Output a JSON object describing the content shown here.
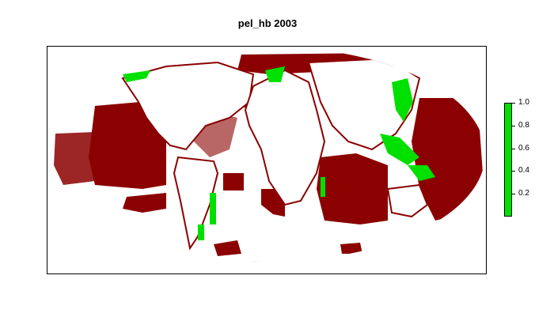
{
  "title": "pel_hb 2003",
  "colors": {
    "low": "#8b0000",
    "high": "#00e000",
    "frame": "#000000",
    "background": "#ffffff"
  },
  "legend": {
    "labels": [
      "1.0",
      "0.8",
      "0.6",
      "0.4",
      "0.2"
    ]
  }
}
